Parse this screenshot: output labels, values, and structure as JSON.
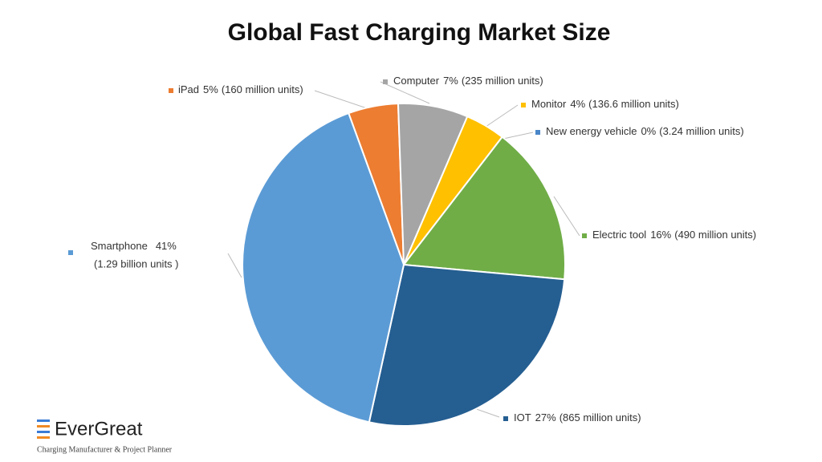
{
  "chart_data": {
    "type": "pie",
    "title": "Global Fast Charging Market Size",
    "categories": [
      "iPad",
      "Computer",
      "Monitor",
      "New energy vehicle",
      "Electric tool",
      "IOT",
      "Smartphone"
    ],
    "values": [
      5,
      7,
      4,
      0,
      16,
      27,
      41
    ],
    "value_labels": [
      "5%",
      "7%",
      "4%",
      "0%",
      "16%",
      "27%",
      "41%"
    ],
    "unit_labels": [
      "(160 million units)",
      "(235 million units)",
      "(136.6 million units)",
      "(3.24 million units)",
      "(490 million units)",
      "(865 million units)",
      "(1.29 billion units )"
    ],
    "colors": [
      "#ed7d31",
      "#a5a5a5",
      "#ffc000",
      "#4a86c8",
      "#70ad47",
      "#255e91",
      "#5b9bd5"
    ]
  },
  "logo": {
    "name": "EverGreat",
    "tagline": "Charging Manufacturer & Project Planner"
  }
}
